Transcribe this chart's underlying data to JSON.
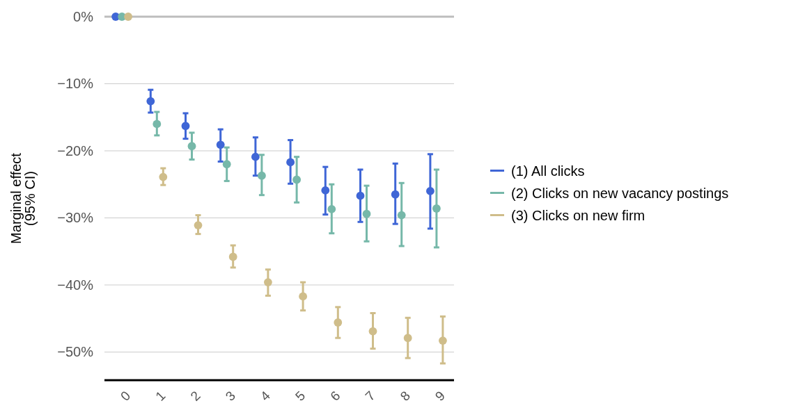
{
  "chart_data": {
    "type": "scatter",
    "ylabel": "Marginal effect\n(95% CI)",
    "categories": [
      "0",
      "1",
      "2",
      "3",
      "4",
      "5",
      "6",
      "7",
      "8",
      "9"
    ],
    "ylim": [
      -54.2,
      0
    ],
    "yticks": [
      {
        "value": 0,
        "label": "0%"
      },
      {
        "value": -10,
        "label": "−10%"
      },
      {
        "value": -20,
        "label": "−20%"
      },
      {
        "value": -30,
        "label": "−30%"
      },
      {
        "value": -40,
        "label": "−40%"
      },
      {
        "value": -50,
        "label": "−50%"
      }
    ],
    "grid": "y",
    "legend": "right",
    "marker": "circle",
    "ref_lines": [
      {
        "axis": "y",
        "value": 0,
        "color": "#bdbdbd"
      }
    ],
    "series": [
      {
        "name": "(1) All clicks",
        "color": "#3f66d6",
        "values": [
          0,
          -12.6,
          -16.3,
          -19.1,
          -20.9,
          -21.7,
          -25.9,
          -26.7,
          -26.5,
          -26.0
        ],
        "errors": [
          null,
          [
            -14.3,
            -10.9
          ],
          [
            -18.2,
            -14.4
          ],
          [
            -21.6,
            -16.8
          ],
          [
            -23.7,
            -18.0
          ],
          [
            -24.9,
            -18.4
          ],
          [
            -29.5,
            -22.4
          ],
          [
            -30.6,
            -22.8
          ],
          [
            -30.9,
            -21.9
          ],
          [
            -31.6,
            -20.5
          ]
        ]
      },
      {
        "name": "(2) Clicks on new vacancy postings",
        "color": "#76b8a9",
        "values": [
          0,
          -16.0,
          -19.3,
          -22.0,
          -23.7,
          -24.3,
          -28.7,
          -29.4,
          -29.6,
          -28.6
        ],
        "errors": [
          null,
          [
            -17.7,
            -14.2
          ],
          [
            -21.3,
            -17.3
          ],
          [
            -24.5,
            -19.5
          ],
          [
            -26.6,
            -20.6
          ],
          [
            -27.7,
            -20.9
          ],
          [
            -32.3,
            -25.0
          ],
          [
            -33.5,
            -25.2
          ],
          [
            -34.2,
            -24.8
          ],
          [
            -34.4,
            -22.8
          ]
        ]
      },
      {
        "name": "(3) Clicks on new firm",
        "color": "#cfbd8a",
        "values": [
          0,
          -23.9,
          -31.1,
          -35.8,
          -39.6,
          -41.7,
          -45.6,
          -46.9,
          -47.9,
          -48.3
        ],
        "errors": [
          null,
          [
            -25.1,
            -22.6
          ],
          [
            -32.4,
            -29.6
          ],
          [
            -37.4,
            -34.1
          ],
          [
            -41.6,
            -37.7
          ],
          [
            -43.8,
            -39.6
          ],
          [
            -47.9,
            -43.3
          ],
          [
            -49.5,
            -44.2
          ],
          [
            -50.9,
            -44.9
          ],
          [
            -51.7,
            -44.7
          ]
        ]
      }
    ]
  }
}
